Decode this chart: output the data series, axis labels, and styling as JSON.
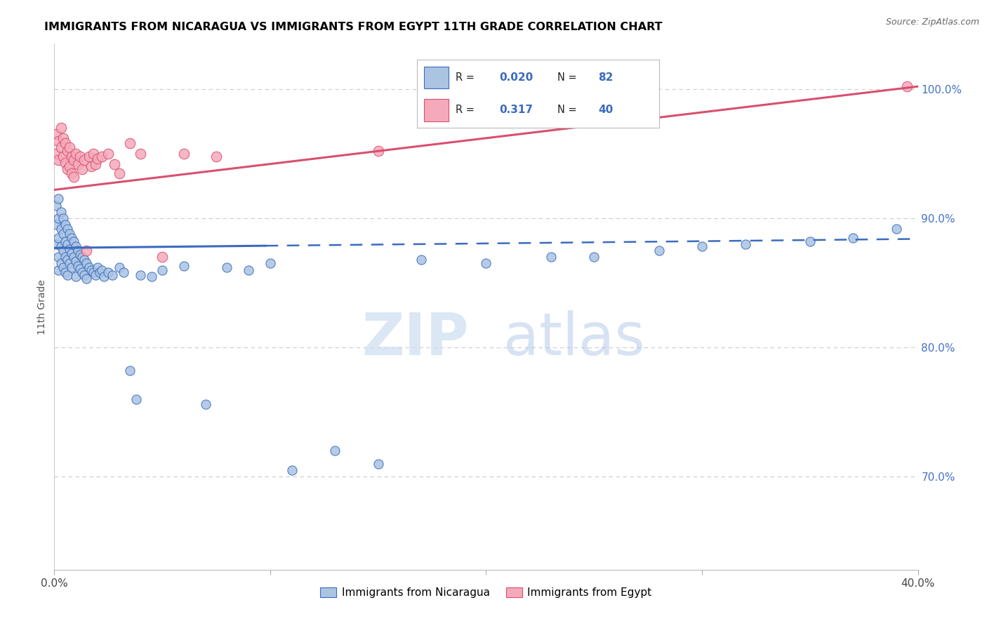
{
  "title": "IMMIGRANTS FROM NICARAGUA VS IMMIGRANTS FROM EGYPT 11TH GRADE CORRELATION CHART",
  "source": "Source: ZipAtlas.com",
  "ylabel": "11th Grade",
  "xlim": [
    0.0,
    0.4
  ],
  "ylim": [
    0.628,
    1.035
  ],
  "right_yticks": [
    0.7,
    0.8,
    0.9,
    1.0
  ],
  "right_ytick_labels": [
    "70.0%",
    "80.0%",
    "90.0%",
    "100.0%"
  ],
  "legend_r_nicaragua": "0.020",
  "legend_n_nicaragua": "82",
  "legend_r_egypt": "0.317",
  "legend_n_egypt": "40",
  "color_nicaragua": "#aac4e2",
  "color_egypt": "#f5aabb",
  "line_color_nicaragua": "#3b6bbf",
  "line_color_egypt": "#d94f6e",
  "watermark_zip": "ZIP",
  "watermark_atlas": "atlas",
  "nicaragua_x": [
    0.001,
    0.001,
    0.001,
    0.002,
    0.002,
    0.002,
    0.002,
    0.002,
    0.003,
    0.003,
    0.003,
    0.003,
    0.004,
    0.004,
    0.004,
    0.004,
    0.005,
    0.005,
    0.005,
    0.005,
    0.006,
    0.006,
    0.006,
    0.006,
    0.007,
    0.007,
    0.007,
    0.008,
    0.008,
    0.008,
    0.009,
    0.009,
    0.01,
    0.01,
    0.01,
    0.011,
    0.011,
    0.012,
    0.012,
    0.013,
    0.013,
    0.014,
    0.014,
    0.015,
    0.015,
    0.016,
    0.017,
    0.018,
    0.019,
    0.02,
    0.021,
    0.022,
    0.023,
    0.025,
    0.027,
    0.03,
    0.032,
    0.035,
    0.038,
    0.04,
    0.045,
    0.05,
    0.06,
    0.07,
    0.08,
    0.09,
    0.1,
    0.11,
    0.13,
    0.15,
    0.17,
    0.2,
    0.23,
    0.25,
    0.28,
    0.3,
    0.32,
    0.35,
    0.37,
    0.39
  ],
  "nicaragua_y": [
    0.91,
    0.895,
    0.88,
    0.915,
    0.9,
    0.885,
    0.87,
    0.86,
    0.905,
    0.892,
    0.878,
    0.865,
    0.9,
    0.888,
    0.875,
    0.862,
    0.895,
    0.882,
    0.87,
    0.858,
    0.892,
    0.88,
    0.868,
    0.856,
    0.888,
    0.876,
    0.865,
    0.885,
    0.873,
    0.862,
    0.882,
    0.87,
    0.878,
    0.867,
    0.855,
    0.875,
    0.863,
    0.872,
    0.861,
    0.87,
    0.858,
    0.868,
    0.856,
    0.865,
    0.853,
    0.862,
    0.86,
    0.858,
    0.856,
    0.862,
    0.858,
    0.86,
    0.855,
    0.858,
    0.856,
    0.862,
    0.858,
    0.782,
    0.76,
    0.856,
    0.855,
    0.86,
    0.863,
    0.756,
    0.862,
    0.86,
    0.865,
    0.705,
    0.72,
    0.71,
    0.868,
    0.865,
    0.87,
    0.87,
    0.875,
    0.878,
    0.88,
    0.882,
    0.885,
    0.892
  ],
  "egypt_x": [
    0.001,
    0.001,
    0.002,
    0.002,
    0.003,
    0.003,
    0.004,
    0.004,
    0.005,
    0.005,
    0.006,
    0.006,
    0.007,
    0.007,
    0.008,
    0.008,
    0.009,
    0.009,
    0.01,
    0.011,
    0.012,
    0.013,
    0.014,
    0.015,
    0.016,
    0.017,
    0.018,
    0.019,
    0.02,
    0.022,
    0.025,
    0.028,
    0.03,
    0.035,
    0.04,
    0.05,
    0.06,
    0.075,
    0.15,
    0.395
  ],
  "egypt_y": [
    0.965,
    0.95,
    0.96,
    0.945,
    0.97,
    0.955,
    0.962,
    0.948,
    0.958,
    0.943,
    0.952,
    0.938,
    0.955,
    0.94,
    0.948,
    0.935,
    0.945,
    0.932,
    0.95,
    0.942,
    0.948,
    0.938,
    0.945,
    0.875,
    0.948,
    0.94,
    0.95,
    0.942,
    0.946,
    0.948,
    0.95,
    0.942,
    0.935,
    0.958,
    0.95,
    0.87,
    0.95,
    0.948,
    0.952,
    1.002
  ],
  "trend_nic_x0": 0.0,
  "trend_nic_y0": 0.877,
  "trend_nic_x1": 0.4,
  "trend_nic_y1": 0.884,
  "trend_nic_solid_end": 0.098,
  "trend_egy_x0": 0.0,
  "trend_egy_y0": 0.922,
  "trend_egy_x1": 0.4,
  "trend_egy_y1": 1.002
}
